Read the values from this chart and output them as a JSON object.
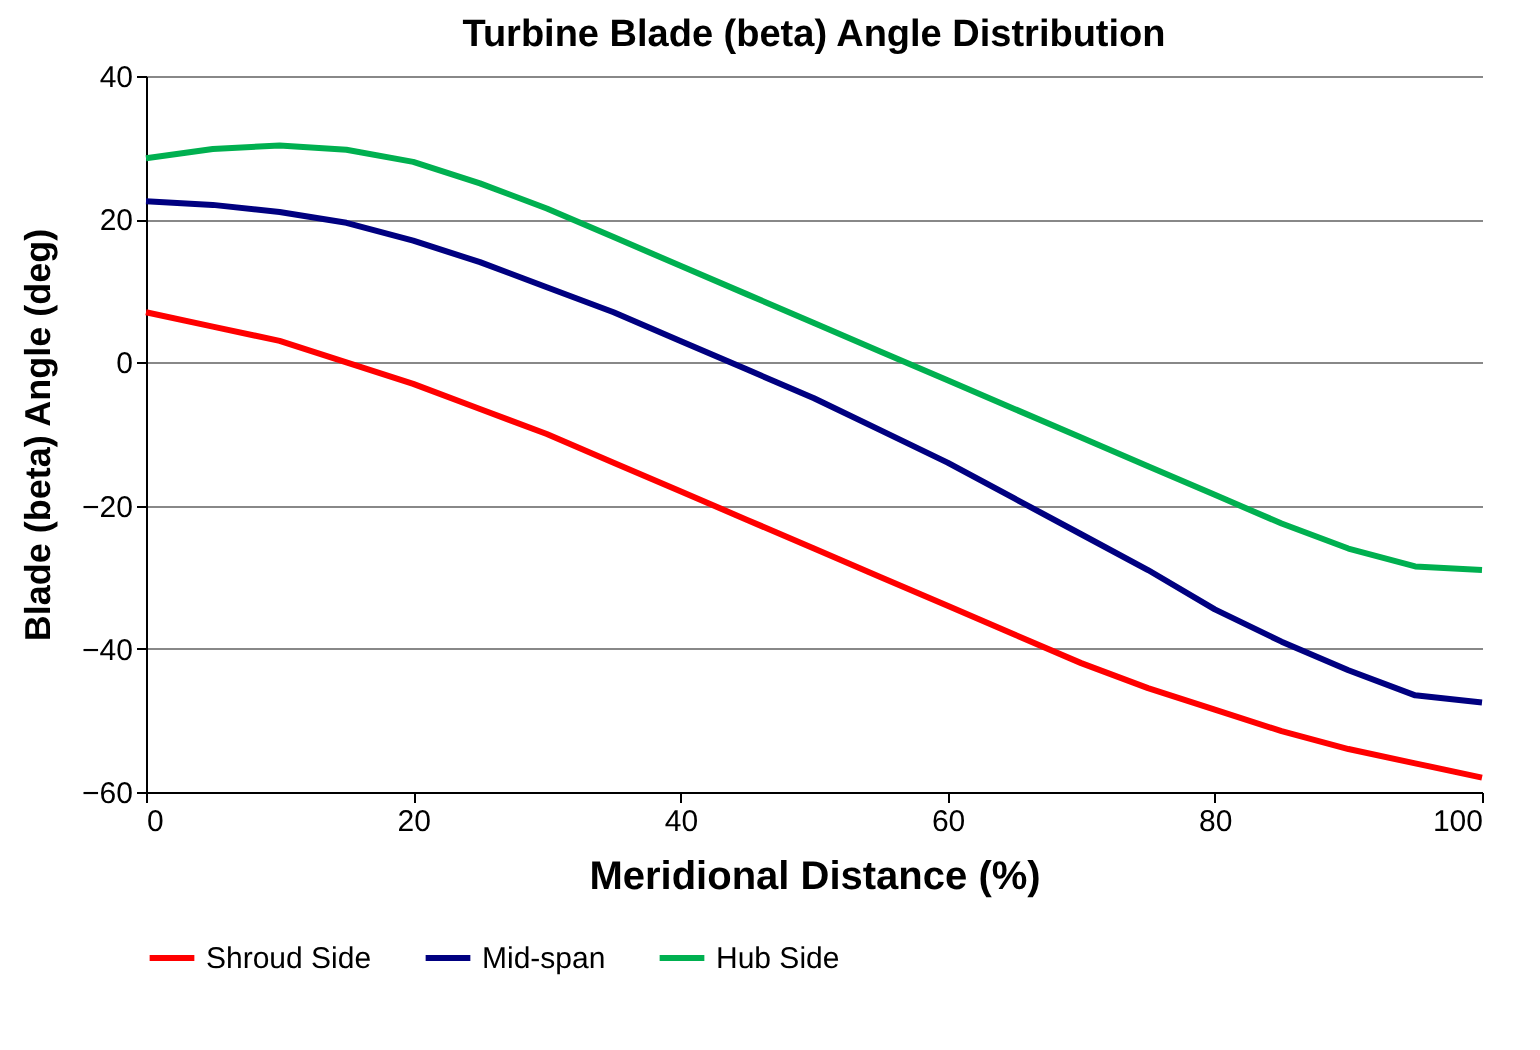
{
  "chart_data": {
    "type": "line",
    "title": "Turbine Blade (beta) Angle Distribution",
    "xlabel": "Meridional Distance (%)",
    "ylabel": "Blade  (beta) Angle (deg)",
    "x": [
      0,
      5,
      10,
      15,
      20,
      25,
      30,
      35,
      40,
      45,
      50,
      55,
      60,
      65,
      70,
      75,
      80,
      85,
      90,
      95,
      100
    ],
    "series": [
      {
        "name": "Shroud Side",
        "color": "#ff0000",
        "values": [
          7,
          5,
          3,
          0,
          -3,
          -6.5,
          -10,
          -14,
          -18,
          -22,
          -26,
          -30,
          -34,
          -38,
          -42,
          -45.5,
          -48.5,
          -51.5,
          -54,
          -56,
          -58
        ]
      },
      {
        "name": "Mid-span",
        "color": "#000080",
        "values": [
          22.5,
          22,
          21,
          19.5,
          17,
          14,
          10.5,
          7,
          3,
          -1,
          -5,
          -9.5,
          -14,
          -19,
          -24,
          -29,
          -34.5,
          -39,
          -43,
          -46.5,
          -47.5
        ]
      },
      {
        "name": "Hub Side",
        "color": "#00b050",
        "values": [
          28.5,
          29.8,
          30.3,
          29.7,
          28,
          25,
          21.5,
          17.5,
          13.5,
          9.5,
          5.5,
          1.5,
          -2.5,
          -6.5,
          -10.5,
          -14.5,
          -18.5,
          -22.5,
          -26,
          -28.5,
          -29
        ]
      }
    ],
    "xlim": [
      0,
      100
    ],
    "xticks": [
      0,
      20,
      40,
      60,
      80,
      100
    ],
    "ylim": [
      -60,
      40
    ],
    "yticks": [
      -60,
      -40,
      -20,
      0,
      20,
      40
    ],
    "grid": "y",
    "legend": "bottom",
    "marker": "none",
    "line_style": "solid"
  }
}
